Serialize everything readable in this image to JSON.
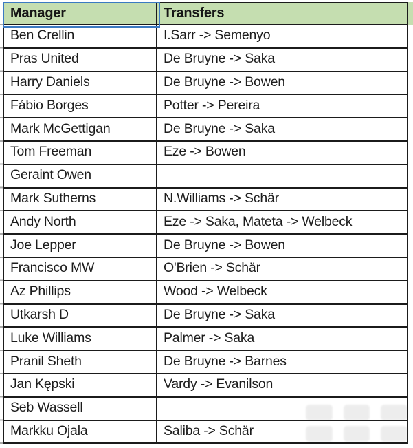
{
  "table": {
    "headers": {
      "manager": "Manager",
      "transfers": "Transfers"
    },
    "rows": [
      {
        "manager": "Ben Crellin",
        "transfers": "I.Sarr -> Semenyo"
      },
      {
        "manager": "Pras United",
        "transfers": "De Bruyne -> Saka"
      },
      {
        "manager": "Harry Daniels",
        "transfers": "De Bruyne -> Bowen"
      },
      {
        "manager": "Fábio Borges",
        "transfers": "Potter -> Pereira"
      },
      {
        "manager": "Mark McGettigan",
        "transfers": "De Bruyne -> Saka"
      },
      {
        "manager": "Tom Freeman",
        "transfers": "Eze -> Bowen"
      },
      {
        "manager": "Geraint Owen",
        "transfers": ""
      },
      {
        "manager": "Mark Sutherns",
        "transfers": "N.Williams -> Schär"
      },
      {
        "manager": "Andy North",
        "transfers": "Eze -> Saka, Mateta -> Welbeck"
      },
      {
        "manager": "Joe Lepper",
        "transfers": "De Bruyne -> Bowen"
      },
      {
        "manager": "Francisco MW",
        "transfers": "O'Brien -> Schär"
      },
      {
        "manager": "Az Phillips",
        "transfers": "Wood -> Welbeck"
      },
      {
        "manager": "Utkarsh D",
        "transfers": "De Bruyne -> Saka"
      },
      {
        "manager": "Luke Williams",
        "transfers": "Palmer -> Saka"
      },
      {
        "manager": "Pranil Sheth",
        "transfers": "De Bruyne -> Barnes"
      },
      {
        "manager": "Jan Kępski",
        "transfers": "Vardy -> Evanilson"
      },
      {
        "manager": "Seb Wassell",
        "transfers": ""
      },
      {
        "manager": "Markku Ojala",
        "transfers": "Saliba -> Schär"
      }
    ]
  },
  "colors": {
    "header_fill": "#c5deb0",
    "selection_border": "#3b7ac2",
    "grid_border": "#1b1b1b",
    "text": "#1d1d1d"
  }
}
